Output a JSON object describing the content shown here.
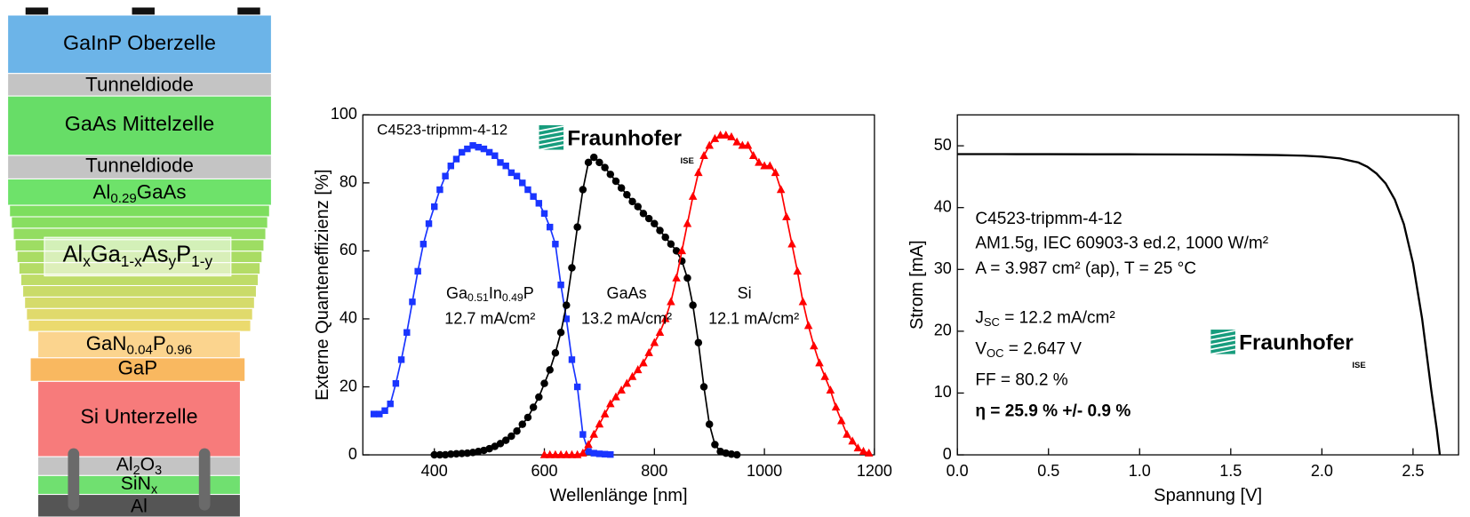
{
  "diagram": {
    "layers": [
      {
        "label": [
          "GaInP Oberzelle"
        ]
      },
      {
        "label": [
          "Tunneldiode"
        ]
      },
      {
        "label": [
          "GaAs Mittelzelle"
        ]
      },
      {
        "label": [
          "Tunneldiode"
        ]
      },
      {
        "label": [
          "Al",
          "0.29",
          "GaAs"
        ]
      },
      {
        "label": [
          "Al",
          "x",
          "Ga",
          "1-x",
          "As",
          "y",
          "P",
          "1-y"
        ]
      },
      {
        "label": [
          "GaN",
          "0.04",
          "P",
          "0.96"
        ]
      },
      {
        "label": [
          "GaP"
        ]
      },
      {
        "label": [
          "Si Unterzelle"
        ]
      },
      {
        "label": [
          "Al",
          "2",
          "O",
          "3"
        ]
      },
      {
        "label": [
          "SiN",
          "x"
        ]
      },
      {
        "label": [
          "Al"
        ]
      }
    ]
  },
  "chart_data": [
    {
      "type": "line",
      "x_label": "Wellenlänge [nm]",
      "y_label": "Externe Quanteneffizienz [%]",
      "xlim": [
        270,
        1200
      ],
      "ylim": [
        0,
        100
      ],
      "xticks": [
        400,
        600,
        800,
        1000,
        1200
      ],
      "yticks": [
        0,
        20,
        40,
        60,
        80,
        100
      ],
      "annotations": [
        [
          "C4523-tripmm-4-12"
        ],
        [
          "Ga",
          "0.51",
          "In",
          "0.49",
          "P"
        ],
        [
          "12.7 mA/cm²"
        ],
        [
          "GaAs"
        ],
        [
          "13.2 mA/cm²"
        ],
        [
          "Si"
        ],
        [
          "12.1 mA/cm²"
        ]
      ],
      "logo": {
        "name": "Fraunhofer",
        "sub": "ISE"
      },
      "series": [
        {
          "color": "#1a35ff",
          "marker": "square",
          "x": [
            290,
            300,
            310,
            320,
            330,
            340,
            350,
            360,
            370,
            380,
            390,
            400,
            410,
            420,
            430,
            440,
            450,
            460,
            470,
            480,
            490,
            500,
            510,
            520,
            530,
            540,
            550,
            560,
            570,
            580,
            590,
            600,
            610,
            620,
            630,
            640,
            650,
            660,
            670,
            680,
            690,
            700,
            710,
            720
          ],
          "values": [
            12,
            12,
            13,
            15,
            21,
            28,
            36,
            45,
            54,
            62,
            68,
            73,
            78,
            82,
            85,
            87,
            89,
            90,
            91,
            90.5,
            90,
            89,
            88,
            86,
            85,
            83,
            82,
            80,
            78,
            76,
            74,
            71,
            67,
            62,
            50,
            40,
            28,
            20,
            6,
            1,
            0.5,
            0.3,
            0.2,
            0.1
          ]
        },
        {
          "color": "#000000",
          "marker": "circle",
          "x": [
            400,
            410,
            420,
            430,
            440,
            450,
            460,
            470,
            480,
            490,
            500,
            510,
            520,
            530,
            540,
            550,
            560,
            570,
            580,
            590,
            600,
            610,
            620,
            630,
            640,
            650,
            660,
            670,
            680,
            690,
            700,
            710,
            720,
            730,
            740,
            750,
            760,
            770,
            780,
            790,
            800,
            810,
            820,
            830,
            840,
            850,
            860,
            870,
            880,
            890,
            900,
            910,
            920,
            930,
            940,
            950
          ],
          "values": [
            0,
            0,
            0,
            0.2,
            0.3,
            0.4,
            0.5,
            0.7,
            1,
            1.3,
            1.8,
            2.5,
            3.3,
            4.3,
            5.5,
            7,
            9,
            11,
            14,
            17,
            21,
            25,
            30,
            36,
            44,
            55,
            67,
            78,
            86,
            87.5,
            86,
            84.5,
            82.5,
            80.5,
            78.5,
            76.5,
            74.5,
            73,
            71,
            69.5,
            68,
            66,
            64,
            62,
            60,
            57,
            52,
            44,
            33,
            20,
            9,
            3,
            1,
            0.5,
            0.2,
            0
          ]
        },
        {
          "color": "#ff0000",
          "marker": "triangle",
          "x": [
            600,
            610,
            620,
            630,
            640,
            650,
            660,
            670,
            680,
            690,
            700,
            710,
            720,
            730,
            740,
            750,
            760,
            770,
            780,
            790,
            800,
            810,
            820,
            830,
            840,
            850,
            860,
            870,
            880,
            890,
            900,
            910,
            920,
            930,
            940,
            950,
            960,
            970,
            980,
            990,
            1000,
            1010,
            1020,
            1030,
            1040,
            1050,
            1060,
            1070,
            1080,
            1090,
            1100,
            1110,
            1120,
            1130,
            1140,
            1150,
            1160,
            1170,
            1180,
            1190
          ],
          "values": [
            0,
            0,
            0,
            0,
            0,
            0,
            0,
            0.5,
            3,
            6,
            9,
            12,
            15,
            17,
            19,
            21,
            23,
            25,
            27,
            30,
            33,
            36,
            40,
            45,
            52,
            60,
            68,
            76,
            83,
            88,
            91,
            93,
            94,
            94,
            93.5,
            92,
            91,
            91,
            88,
            86,
            85,
            85,
            83,
            78,
            70,
            62,
            54,
            45,
            38,
            32,
            27,
            23,
            19,
            14,
            10,
            6,
            4,
            2,
            1,
            0.5
          ]
        }
      ]
    },
    {
      "type": "line",
      "x_label": "Spannung [V]",
      "y_label": "Strom [mA]",
      "xlim": [
        0,
        2.75
      ],
      "ylim": [
        0,
        55
      ],
      "xticks": [
        {
          "value": 0,
          "label": "0.0"
        },
        0.5,
        {
          "value": 1,
          "label": "1.0"
        },
        1.5,
        {
          "value": 2,
          "label": "2.0"
        },
        2.5
      ],
      "yticks": [
        0,
        10,
        20,
        30,
        40,
        50
      ],
      "annotations": [
        [
          "C4523-tripmm-4-12"
        ],
        [
          "AM1.5g, IEC 60903-3 ed.2, 1000 W/m²"
        ],
        [
          "A = 3.987 cm² (ap), T = 25 °C"
        ],
        [
          "J",
          "SC",
          " = 12.2 mA/cm²"
        ],
        [
          "V",
          "OC",
          " = 2.647 V"
        ],
        [
          "FF = 80.2 %"
        ],
        [
          "η = 25.9 % +/- 0.9 %"
        ]
      ],
      "logo": {
        "name": "Fraunhofer",
        "sub": "ISE"
      },
      "series": [
        {
          "color": "#000000",
          "marker": "none",
          "x": [
            0,
            0.25,
            0.5,
            0.75,
            1.0,
            1.25,
            1.5,
            1.75,
            1.9,
            2.0,
            2.1,
            2.2,
            2.25,
            2.3,
            2.35,
            2.4,
            2.45,
            2.5,
            2.55,
            2.6,
            2.63,
            2.647
          ],
          "values": [
            48.65,
            48.65,
            48.64,
            48.63,
            48.62,
            48.6,
            48.57,
            48.5,
            48.4,
            48.25,
            47.95,
            47.3,
            46.6,
            45.5,
            43.9,
            41.3,
            37.3,
            31.0,
            22.0,
            10.5,
            4.2,
            0
          ]
        }
      ]
    }
  ]
}
